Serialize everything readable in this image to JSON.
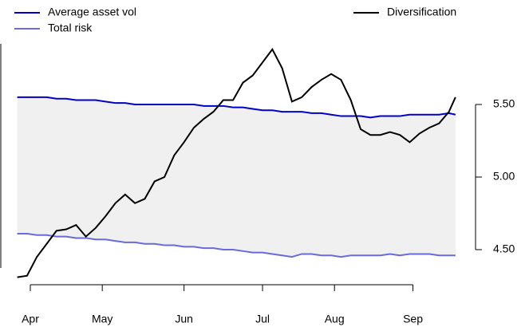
{
  "chart_data": {
    "type": "line",
    "x": [
      -4,
      -1,
      2,
      5,
      8,
      11,
      14,
      17,
      20,
      23,
      26,
      29,
      32,
      35,
      38,
      41,
      44,
      47,
      50,
      53,
      56,
      59,
      62,
      65,
      68,
      71,
      74,
      77,
      80,
      83,
      86,
      89,
      92,
      95,
      98,
      101,
      104,
      107,
      110,
      113,
      116,
      119,
      122,
      125,
      128,
      130
    ],
    "xlim": [
      -4.5,
      131.5
    ],
    "xticks": [
      {
        "value": 0,
        "label": "Apr"
      },
      {
        "value": 22,
        "label": "May"
      },
      {
        "value": 47,
        "label": "Jun"
      },
      {
        "value": 71,
        "label": "Jul"
      },
      {
        "value": 93,
        "label": "Aug"
      },
      {
        "value": 117,
        "label": "Sep"
      }
    ],
    "y2lim": [
      4.25,
      6.0
    ],
    "y2ticks": [
      {
        "value": 4.5,
        "label": "4.50"
      },
      {
        "value": 5,
        "label": "5.00"
      },
      {
        "value": 5.5,
        "label": "5.50"
      }
    ],
    "band_color": "#f0f0f0",
    "series": [
      {
        "name": "Average asset vol",
        "color": "#0000cc",
        "axis": "y2",
        "values": [
          5.55,
          5.55,
          5.55,
          5.55,
          5.54,
          5.54,
          5.53,
          5.53,
          5.53,
          5.52,
          5.51,
          5.51,
          5.5,
          5.5,
          5.5,
          5.5,
          5.5,
          5.5,
          5.5,
          5.49,
          5.49,
          5.49,
          5.48,
          5.48,
          5.47,
          5.46,
          5.46,
          5.45,
          5.45,
          5.45,
          5.44,
          5.44,
          5.43,
          5.42,
          5.42,
          5.42,
          5.41,
          5.42,
          5.42,
          5.42,
          5.43,
          5.43,
          5.43,
          5.43,
          5.44,
          5.43
        ]
      },
      {
        "name": "Total risk",
        "color": "#6a6ae0",
        "axis": "y2",
        "values": [
          4.61,
          4.61,
          4.6,
          4.6,
          4.59,
          4.59,
          4.58,
          4.58,
          4.57,
          4.57,
          4.56,
          4.55,
          4.55,
          4.54,
          4.54,
          4.53,
          4.53,
          4.52,
          4.52,
          4.51,
          4.51,
          4.5,
          4.5,
          4.49,
          4.48,
          4.48,
          4.47,
          4.46,
          4.45,
          4.47,
          4.47,
          4.46,
          4.46,
          4.45,
          4.46,
          4.46,
          4.46,
          4.46,
          4.47,
          4.46,
          4.47,
          4.47,
          4.47,
          4.46,
          4.46,
          4.46
        ]
      },
      {
        "name": "Diversification",
        "color": "#000000",
        "axis": "y2",
        "values": [
          4.31,
          4.32,
          4.45,
          4.54,
          4.63,
          4.64,
          4.67,
          4.59,
          4.65,
          4.73,
          4.82,
          4.88,
          4.82,
          4.85,
          4.97,
          5.0,
          5.15,
          5.24,
          5.34,
          5.4,
          5.45,
          5.53,
          5.53,
          5.65,
          5.7,
          5.79,
          5.88,
          5.75,
          5.52,
          5.55,
          5.62,
          5.67,
          5.71,
          5.67,
          5.53,
          5.33,
          5.29,
          5.29,
          5.31,
          5.29,
          5.24,
          5.3,
          5.34,
          5.37,
          5.45,
          5.55
        ]
      }
    ]
  }
}
